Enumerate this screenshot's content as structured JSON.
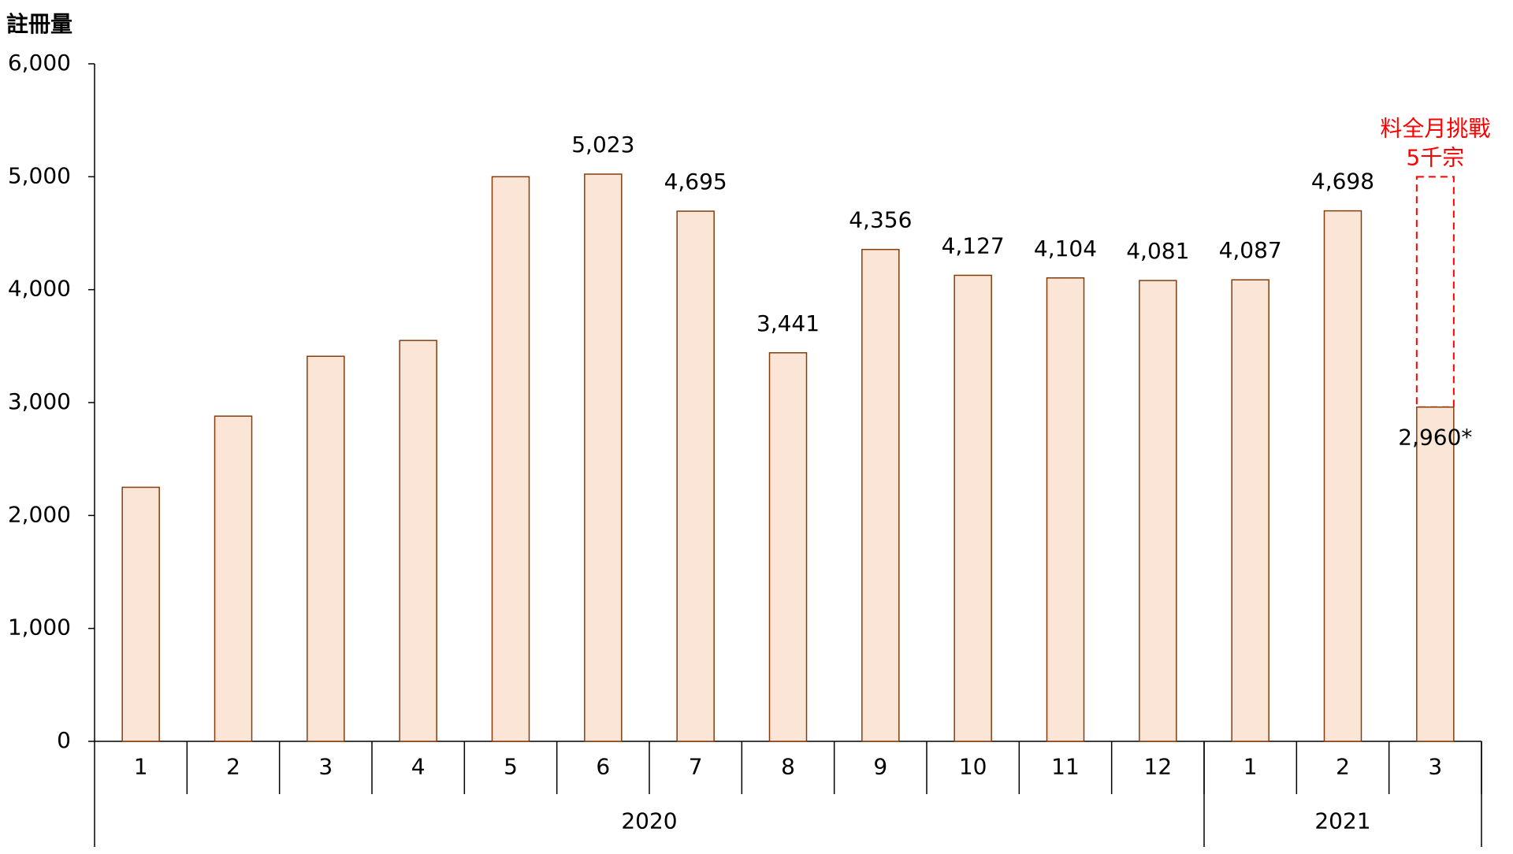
{
  "chart_data": {
    "type": "bar",
    "y_axis_label": "註冊量",
    "categories": [
      "1",
      "2",
      "3",
      "4",
      "5",
      "6",
      "7",
      "8",
      "9",
      "10",
      "11",
      "12",
      "1",
      "2",
      "3"
    ],
    "groups": [
      {
        "label": "2020",
        "span": 12
      },
      {
        "label": "2021",
        "span": 3
      }
    ],
    "values": [
      2250,
      2880,
      3410,
      3550,
      5000,
      5023,
      4695,
      3441,
      4356,
      4127,
      4104,
      4081,
      4087,
      4698,
      2960
    ],
    "value_labels": [
      null,
      null,
      null,
      null,
      null,
      "5,023",
      "4,695",
      "3,441",
      "4,356",
      "4,127",
      "4,104",
      "4,081",
      "4,087",
      "4,698",
      "2,960*"
    ],
    "color": "#fbe5d6",
    "edge_color": "#843c0c",
    "target": {
      "value": 5000,
      "category": 14,
      "color": "#ff0000",
      "labels": [
        "料全月挑戰",
        "5千宗"
      ]
    },
    "ylim": [
      0,
      6000
    ],
    "yticks": [
      0,
      {
        "value": 1000,
        "label": "1,000"
      },
      {
        "value": 2000,
        "label": "2,000"
      },
      {
        "value": 3000,
        "label": "3,000"
      },
      {
        "value": 4000,
        "label": "4,000"
      },
      {
        "value": 5000,
        "label": "5,000"
      },
      {
        "value": 6000,
        "label": "6,000"
      }
    ],
    "grid": false
  }
}
